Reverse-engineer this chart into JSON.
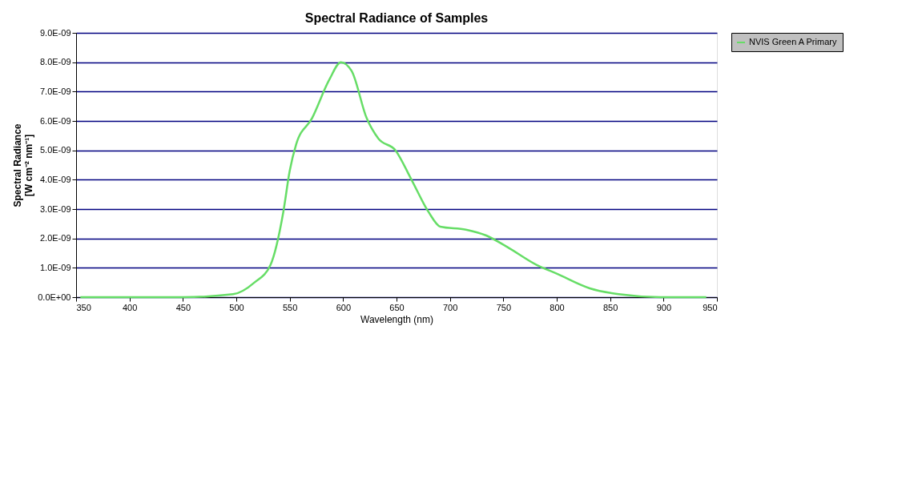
{
  "chart_data": {
    "type": "line",
    "title": "Spectral Radiance of Samples",
    "xlabel": "Wavelength (nm)",
    "ylabel": "Spectral Radiance\n[W cm⁻² nm⁻¹]",
    "series": [
      {
        "name": "NVIS Green A Primary",
        "color": "#66dd66",
        "x": [
          354,
          400,
          450,
          497,
          517,
          532,
          544,
          550,
          556,
          571,
          587,
          598,
          608,
          622,
          633,
          649,
          664,
          680,
          691,
          715,
          734,
          754,
          781,
          800,
          831,
          858,
          897,
          940
        ],
        "values": [
          0,
          0,
          0,
          1e-10,
          5e-10,
          1.1e-09,
          2.9e-09,
          4.3e-09,
          5.2e-09,
          6.1e-09,
          7.4e-09,
          8e-09,
          7.7e-09,
          6.1e-09,
          5.4e-09,
          5e-09,
          4e-09,
          2.9e-09,
          2.4e-09,
          2.3e-09,
          2.1e-09,
          1.7e-09,
          1.1e-09,
          8e-10,
          3e-10,
          1e-10,
          0,
          0
        ]
      }
    ],
    "xlim": [
      350,
      950
    ],
    "xticks": [
      350,
      400,
      450,
      500,
      550,
      600,
      650,
      700,
      750,
      800,
      850,
      900,
      950
    ],
    "ylim": [
      0,
      9e-09
    ],
    "yticks": [
      {
        "value": 0,
        "label": "0.0E+00"
      },
      {
        "value": 1e-09,
        "label": "1.0E-09"
      },
      {
        "value": 2e-09,
        "label": "2.0E-09"
      },
      {
        "value": 3e-09,
        "label": "3.0E-09"
      },
      {
        "value": 4e-09,
        "label": "4.0E-09"
      },
      {
        "value": 5e-09,
        "label": "5.0E-09"
      },
      {
        "value": 6e-09,
        "label": "6.0E-09"
      },
      {
        "value": 7e-09,
        "label": "7.0E-09"
      },
      {
        "value": 8e-09,
        "label": "8.0E-09"
      },
      {
        "value": 9e-09,
        "label": "9.0E-09"
      }
    ],
    "grid": "y",
    "legend": "top right",
    "marker": "none",
    "line_style": "solid"
  }
}
